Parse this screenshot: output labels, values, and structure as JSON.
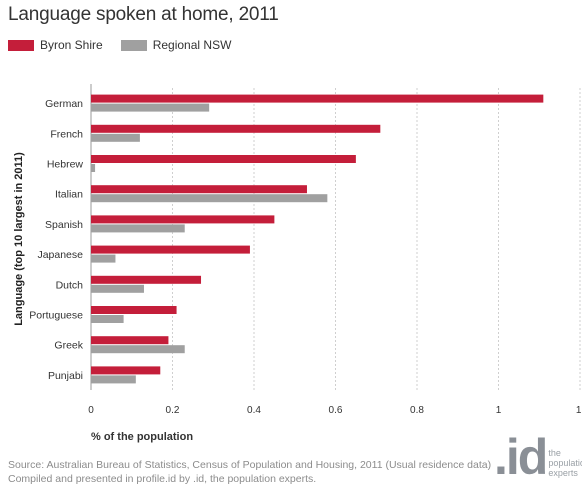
{
  "chart_data": {
    "type": "bar",
    "orientation": "horizontal",
    "title": "Language spoken at home, 2011",
    "xlabel": "% of the population",
    "ylabel": "Language (top 10 largest in 2011)",
    "categories": [
      "German",
      "French",
      "Hebrew",
      "Italian",
      "Spanish",
      "Japanese",
      "Dutch",
      "Portuguese",
      "Greek",
      "Punjabi"
    ],
    "series": [
      {
        "name": "Byron Shire",
        "color": "#c41e3a",
        "values": [
          1.11,
          0.71,
          0.65,
          0.53,
          0.45,
          0.39,
          0.27,
          0.21,
          0.19,
          0.17
        ]
      },
      {
        "name": "Regional NSW",
        "color": "#a0a0a0",
        "values": [
          0.29,
          0.12,
          0.01,
          0.58,
          0.23,
          0.06,
          0.13,
          0.08,
          0.23,
          0.11
        ]
      }
    ],
    "xlim": [
      0,
      1.2
    ],
    "xticks": [
      "0",
      "0.2",
      "0.4",
      "0.6",
      "0.8",
      "1",
      "1."
    ],
    "legend_position": "top-left",
    "grid": "vertical-dashed"
  },
  "footer": {
    "source": "Source: Australian Bureau of Statistics, Census of Population and Housing, 2011 (Usual residence data)",
    "compiled": "Compiled and presented in profile.id by .id, the population experts."
  },
  "brand": {
    "logo_text": ".id",
    "tagline_1": "the",
    "tagline_2": "population",
    "tagline_3": "experts"
  }
}
